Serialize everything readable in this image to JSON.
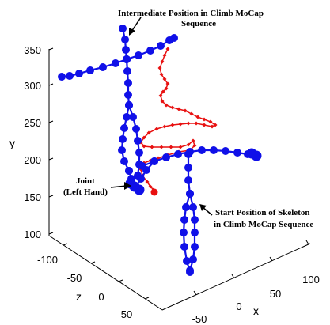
{
  "chart_data": {
    "type": "scatter",
    "subtype": "3d-skeleton-motion-capture",
    "title": "",
    "axes": {
      "x": {
        "label": "x",
        "ticks": [
          "-50",
          "0",
          "50",
          "100"
        ]
      },
      "y": {
        "label": "y",
        "ticks": [
          "100",
          "150",
          "200",
          "250",
          "300",
          "350"
        ]
      },
      "z": {
        "label": "z",
        "ticks": [
          "-100",
          "-50",
          "0",
          "50"
        ]
      }
    },
    "grid": false,
    "colors": {
      "skeleton": "#1010e8",
      "trajectory": "#e81010",
      "axes": "#000000"
    },
    "annotations": [
      {
        "id": "intermediate",
        "lines": [
          "Intermediate Position in Climb MoCap",
          "Sequence"
        ]
      },
      {
        "id": "joint",
        "lines": [
          "Joint",
          "(Left Hand)"
        ]
      },
      {
        "id": "start",
        "lines": [
          "Start Position of Skeleton",
          "in Climb MoCap Sequence"
        ]
      }
    ],
    "series": [
      {
        "marker": "circle",
        "color": "#1010e8",
        "description_role": "skeleton-joints"
      },
      {
        "marker": "diamond",
        "color": "#e81010",
        "description_role": "left-hand-trajectory"
      }
    ]
  }
}
